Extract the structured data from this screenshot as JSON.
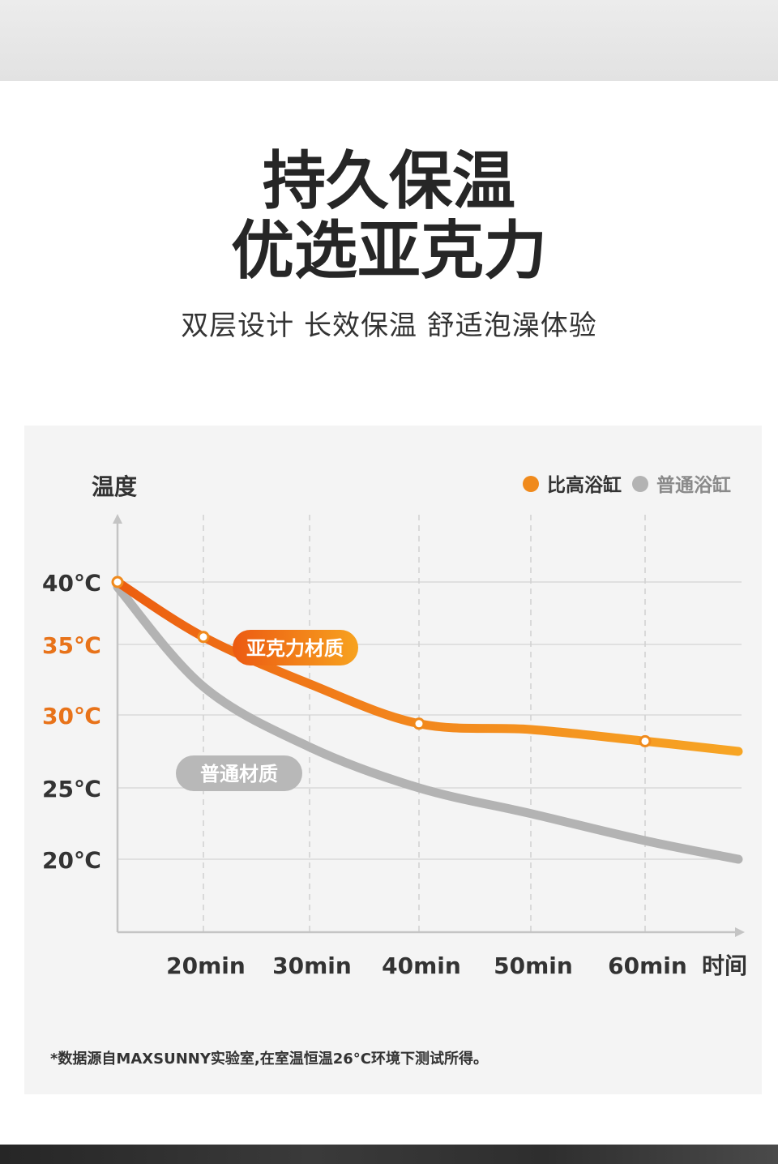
{
  "header": {
    "title_line1": "持久保温",
    "title_line2": "优选亚克力",
    "subtitle": "双层设计 长效保温 舒适泡澡体验"
  },
  "chart_data": {
    "type": "line",
    "ylabel": "温度",
    "xlabel": "时间",
    "categories": [
      "20min",
      "30min",
      "40min",
      "50min",
      "60min"
    ],
    "y_ticks": [
      {
        "label": "40℃",
        "value": 40,
        "color": "#333333"
      },
      {
        "label": "35℃",
        "value": 35,
        "color": "#e8731a"
      },
      {
        "label": "30℃",
        "value": 30,
        "color": "#e8731a"
      },
      {
        "label": "25℃",
        "value": 25,
        "color": "#333333"
      },
      {
        "label": "20℃",
        "value": 20,
        "color": "#333333"
      }
    ],
    "ylim": [
      15,
      45
    ],
    "legend_position": "top-right",
    "series": [
      {
        "name": "比高浴缸",
        "color": "#f08a1c",
        "label": "亚克力材质",
        "x": [
          10,
          20,
          30,
          40,
          50,
          60,
          65
        ],
        "y": [
          40,
          35.6,
          32.2,
          29.4,
          29.0,
          28.2,
          27.5
        ],
        "markers": [
          0,
          1,
          3,
          5
        ]
      },
      {
        "name": "普通浴缸",
        "color": "#b3b3b3",
        "label": "普通材质",
        "x": [
          10,
          20,
          30,
          40,
          50,
          60,
          65
        ],
        "y": [
          39.6,
          32.0,
          27.8,
          25.0,
          23.2,
          21.3,
          20.0
        ],
        "markers": []
      }
    ]
  },
  "footnote": "*数据源自MAXSUNNY实验室,在室温恒温26°C环境下测试所得。"
}
